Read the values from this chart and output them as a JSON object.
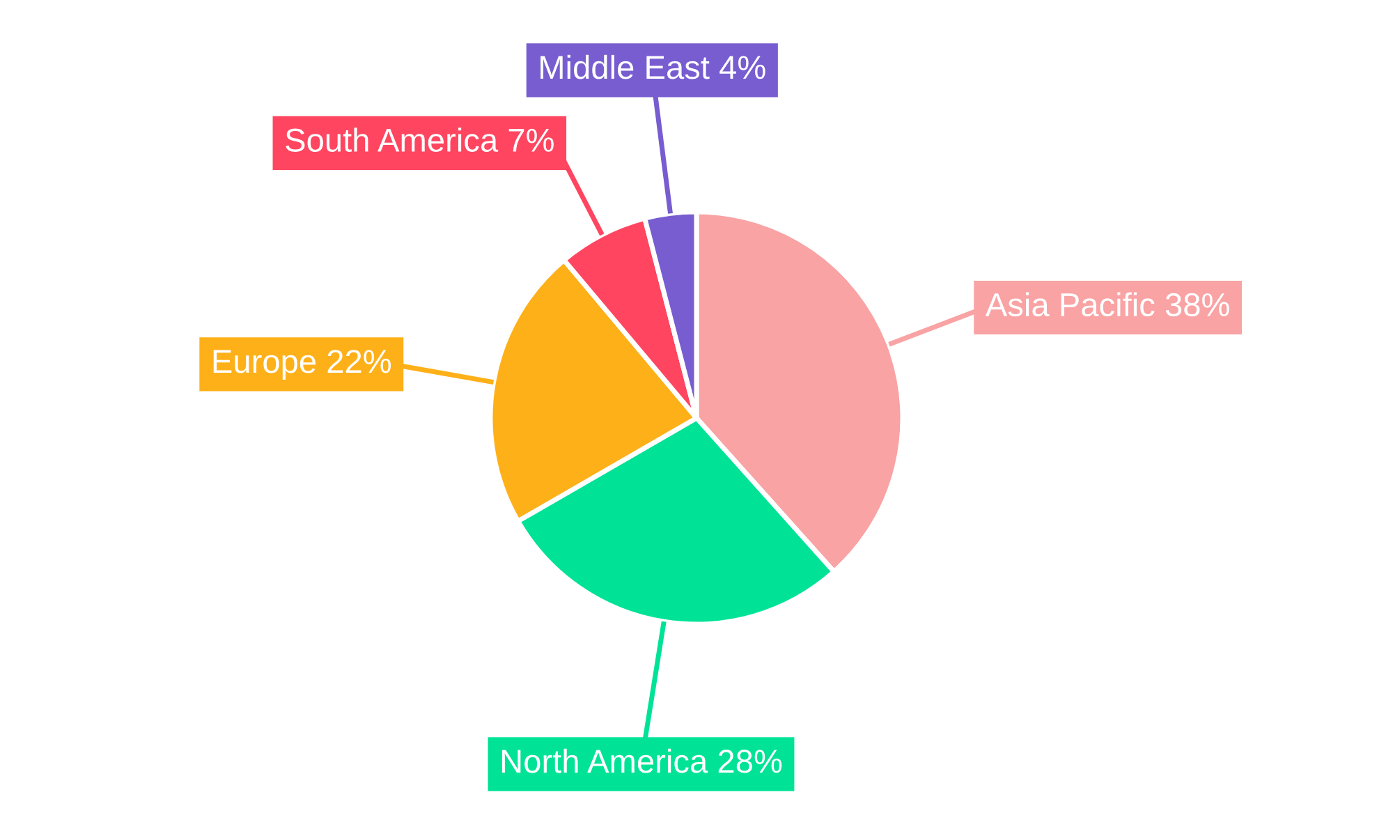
{
  "chart_data": {
    "type": "pie",
    "categories": [
      "Asia Pacific",
      "North America",
      "Europe",
      "South America",
      "Middle East"
    ],
    "values": [
      38,
      28,
      22,
      7,
      4
    ],
    "colors": [
      "#f9a3a4",
      "#00e396",
      "#feb019",
      "#ff4560",
      "#775dd0"
    ],
    "value_labels": [
      "38%",
      "28%",
      "22%",
      "7%",
      "4%"
    ]
  }
}
